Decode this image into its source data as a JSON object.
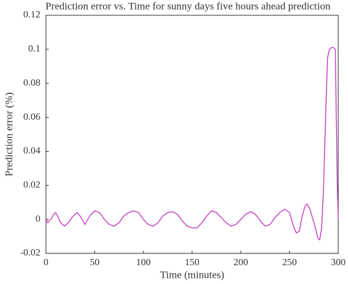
{
  "chart_data": {
    "type": "line",
    "title": "Prediction error vs. Time for sunny days five hours ahead prediction",
    "x_label": "Time (minutes)",
    "y_label": "Prediction error (%)",
    "x": [
      0,
      2,
      5,
      8,
      10,
      12,
      15,
      19,
      23,
      28,
      32,
      35,
      40,
      45,
      50,
      55,
      60,
      65,
      70,
      75,
      80,
      85,
      90,
      95,
      100,
      105,
      110,
      115,
      120,
      125,
      130,
      135,
      140,
      145,
      150,
      155,
      160,
      165,
      170,
      175,
      180,
      185,
      190,
      195,
      200,
      205,
      210,
      215,
      220,
      225,
      230,
      235,
      240,
      245,
      250,
      254,
      257,
      260,
      263,
      266,
      268,
      271,
      274,
      277,
      279,
      281,
      283,
      285,
      287,
      289,
      291,
      293,
      295,
      297,
      298,
      299,
      300
    ],
    "series": [
      {
        "name": "Prediction error",
        "color": "#c03cc0",
        "values": [
          0,
          -0.002,
          0,
          0.003,
          0.004,
          0.002,
          -0.002,
          -0.004,
          -0.002,
          0.002,
          0.004,
          0.002,
          -0.003,
          0.002,
          0.005,
          0.004,
          0,
          -0.003,
          -0.004,
          -0.002,
          0.002,
          0.004,
          0.005,
          0.004,
          0,
          -0.003,
          -0.004,
          -0.002,
          0.002,
          0.004,
          0.0045,
          0.003,
          -0.001,
          -0.004,
          -0.005,
          -0.005,
          -0.002,
          0.002,
          0.005,
          0.004,
          0.001,
          -0.002,
          -0.004,
          -0.003,
          0,
          0.003,
          0.0045,
          0.003,
          -0.001,
          -0.004,
          -0.003,
          0.001,
          0.004,
          0.006,
          0.004,
          -0.004,
          -0.008,
          -0.007,
          0.002,
          0.008,
          0.009,
          0.006,
          0,
          -0.006,
          -0.011,
          -0.012,
          -0.005,
          0.02,
          0.06,
          0.095,
          0.1,
          0.101,
          0.101,
          0.1,
          0.06,
          0.02,
          0
        ]
      }
    ],
    "xlim": [
      0,
      300
    ],
    "xticks": [
      0,
      50,
      100,
      150,
      200,
      250,
      300
    ],
    "ylim": [
      -0.02,
      0.12
    ],
    "yticks": [
      -0.02,
      0,
      0.02,
      0.04,
      0.06,
      0.08,
      0.1,
      0.12
    ]
  }
}
